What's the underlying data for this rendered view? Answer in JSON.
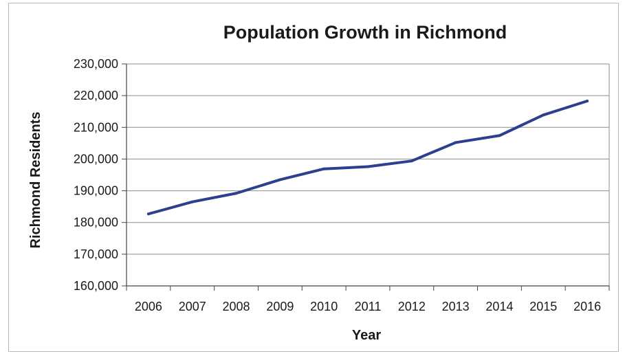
{
  "chart_data": {
    "type": "line",
    "title": "Population Growth in Richmond",
    "xlabel": "Year",
    "ylabel": "Richmond Residents",
    "categories": [
      "2006",
      "2007",
      "2008",
      "2009",
      "2010",
      "2011",
      "2012",
      "2013",
      "2014",
      "2015",
      "2016"
    ],
    "series": [
      {
        "values": [
          182700,
          186500,
          189200,
          193500,
          196900,
          197600,
          199400,
          205200,
          207400,
          213900,
          218300
        ]
      }
    ],
    "yticks": [
      "160,000",
      "170,000",
      "180,000",
      "190,000",
      "200,000",
      "210,000",
      "220,000",
      "230,000"
    ],
    "ylim": [
      160000,
      230000
    ],
    "grid": true,
    "legend": "none",
    "line_color": "#2e3f8f",
    "grid_color": "#8c8c8c"
  }
}
